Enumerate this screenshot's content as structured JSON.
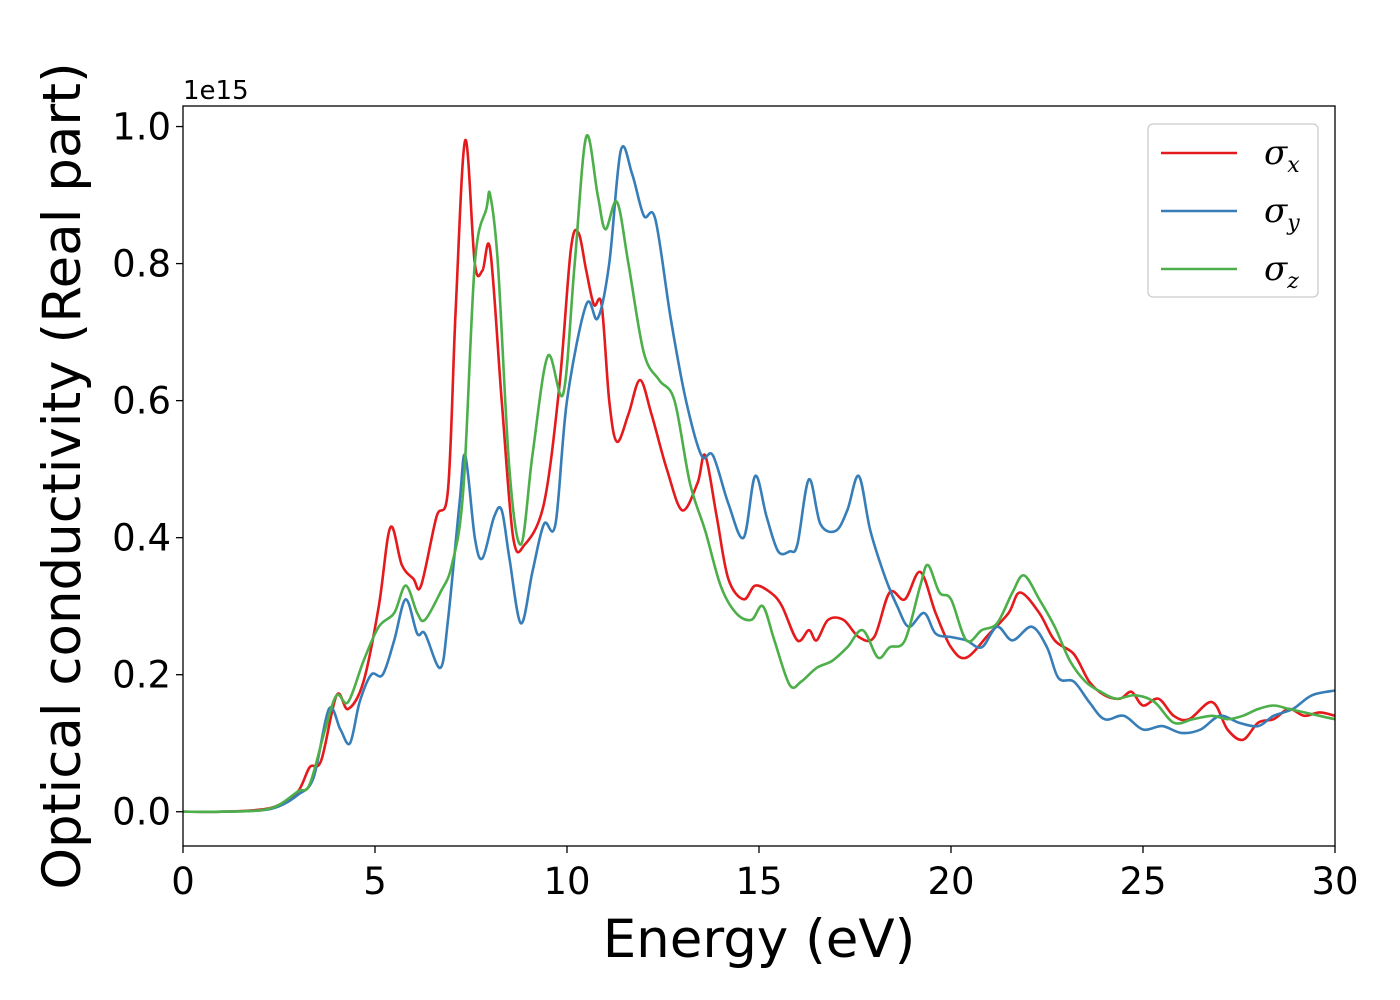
{
  "chart_data": {
    "type": "line",
    "xlabel": "Energy (eV)",
    "ylabel": "Optical conductivity (Real part)",
    "y_offset_label": "1e15",
    "xlim": [
      0,
      30
    ],
    "ylim": [
      -0.05,
      1.03
    ],
    "xticks": [
      0,
      5,
      10,
      15,
      20,
      25,
      30
    ],
    "yticks": [
      0.0,
      0.2,
      0.4,
      0.6,
      0.8,
      1.0
    ],
    "xtick_labels": [
      "0",
      "5",
      "10",
      "15",
      "20",
      "25",
      "30"
    ],
    "ytick_labels": [
      "0.0",
      "0.2",
      "0.4",
      "0.6",
      "0.8",
      "1.0"
    ],
    "grid": false,
    "legend_position": "top-right",
    "series": [
      {
        "name": "σx",
        "symbol": "σ",
        "subscript": "x",
        "color": "#e41a1c",
        "points": [
          [
            0,
            0
          ],
          [
            1,
            0
          ],
          [
            2,
            0.003
          ],
          [
            2.5,
            0.01
          ],
          [
            3,
            0.03
          ],
          [
            3.3,
            0.065
          ],
          [
            3.6,
            0.075
          ],
          [
            4,
            0.17
          ],
          [
            4.3,
            0.15
          ],
          [
            4.7,
            0.19
          ],
          [
            5.1,
            0.3
          ],
          [
            5.4,
            0.415
          ],
          [
            5.7,
            0.36
          ],
          [
            6,
            0.34
          ],
          [
            6.2,
            0.33
          ],
          [
            6.6,
            0.43
          ],
          [
            6.9,
            0.47
          ],
          [
            7.1,
            0.73
          ],
          [
            7.35,
            0.98
          ],
          [
            7.6,
            0.8
          ],
          [
            7.8,
            0.79
          ],
          [
            8,
            0.82
          ],
          [
            8.3,
            0.6
          ],
          [
            8.6,
            0.4
          ],
          [
            8.9,
            0.39
          ],
          [
            9.4,
            0.45
          ],
          [
            9.8,
            0.62
          ],
          [
            10.1,
            0.82
          ],
          [
            10.3,
            0.845
          ],
          [
            10.5,
            0.79
          ],
          [
            10.7,
            0.74
          ],
          [
            10.9,
            0.74
          ],
          [
            11.1,
            0.6
          ],
          [
            11.3,
            0.54
          ],
          [
            11.6,
            0.58
          ],
          [
            11.9,
            0.63
          ],
          [
            12.2,
            0.58
          ],
          [
            12.6,
            0.5
          ],
          [
            13,
            0.44
          ],
          [
            13.4,
            0.48
          ],
          [
            13.6,
            0.52
          ],
          [
            13.9,
            0.43
          ],
          [
            14.2,
            0.34
          ],
          [
            14.6,
            0.31
          ],
          [
            14.9,
            0.33
          ],
          [
            15.3,
            0.32
          ],
          [
            15.6,
            0.3
          ],
          [
            16,
            0.25
          ],
          [
            16.3,
            0.265
          ],
          [
            16.5,
            0.25
          ],
          [
            16.8,
            0.28
          ],
          [
            17.2,
            0.28
          ],
          [
            17.6,
            0.255
          ],
          [
            18,
            0.255
          ],
          [
            18.4,
            0.32
          ],
          [
            18.8,
            0.31
          ],
          [
            19.2,
            0.35
          ],
          [
            19.6,
            0.29
          ],
          [
            20,
            0.24
          ],
          [
            20.4,
            0.225
          ],
          [
            21,
            0.26
          ],
          [
            21.5,
            0.29
          ],
          [
            21.8,
            0.32
          ],
          [
            22.3,
            0.29
          ],
          [
            22.7,
            0.25
          ],
          [
            23.2,
            0.23
          ],
          [
            23.6,
            0.19
          ],
          [
            24,
            0.17
          ],
          [
            24.4,
            0.165
          ],
          [
            24.7,
            0.175
          ],
          [
            25,
            0.155
          ],
          [
            25.4,
            0.165
          ],
          [
            25.8,
            0.14
          ],
          [
            26.2,
            0.135
          ],
          [
            26.8,
            0.16
          ],
          [
            27.2,
            0.12
          ],
          [
            27.6,
            0.105
          ],
          [
            28,
            0.13
          ],
          [
            28.4,
            0.135
          ],
          [
            28.8,
            0.15
          ],
          [
            29.2,
            0.14
          ],
          [
            29.6,
            0.145
          ],
          [
            30,
            0.14
          ]
        ]
      },
      {
        "name": "σy",
        "symbol": "σ",
        "subscript": "y",
        "color": "#377eb8",
        "points": [
          [
            0,
            0
          ],
          [
            1,
            0
          ],
          [
            2,
            0.002
          ],
          [
            2.5,
            0.008
          ],
          [
            3,
            0.025
          ],
          [
            3.4,
            0.05
          ],
          [
            3.8,
            0.15
          ],
          [
            4.1,
            0.12
          ],
          [
            4.35,
            0.1
          ],
          [
            4.6,
            0.16
          ],
          [
            4.9,
            0.2
          ],
          [
            5.2,
            0.2
          ],
          [
            5.5,
            0.25
          ],
          [
            5.8,
            0.31
          ],
          [
            6.1,
            0.26
          ],
          [
            6.3,
            0.26
          ],
          [
            6.7,
            0.21
          ],
          [
            6.9,
            0.28
          ],
          [
            7.2,
            0.45
          ],
          [
            7.35,
            0.52
          ],
          [
            7.6,
            0.4
          ],
          [
            7.8,
            0.37
          ],
          [
            8.1,
            0.43
          ],
          [
            8.3,
            0.44
          ],
          [
            8.5,
            0.37
          ],
          [
            8.8,
            0.275
          ],
          [
            9.1,
            0.35
          ],
          [
            9.4,
            0.42
          ],
          [
            9.7,
            0.42
          ],
          [
            10,
            0.6
          ],
          [
            10.5,
            0.74
          ],
          [
            10.8,
            0.72
          ],
          [
            11.1,
            0.8
          ],
          [
            11.4,
            0.965
          ],
          [
            11.7,
            0.93
          ],
          [
            12,
            0.87
          ],
          [
            12.3,
            0.865
          ],
          [
            12.7,
            0.72
          ],
          [
            13.1,
            0.6
          ],
          [
            13.5,
            0.52
          ],
          [
            13.8,
            0.52
          ],
          [
            14.2,
            0.45
          ],
          [
            14.6,
            0.4
          ],
          [
            14.9,
            0.49
          ],
          [
            15.2,
            0.43
          ],
          [
            15.5,
            0.38
          ],
          [
            15.8,
            0.38
          ],
          [
            16,
            0.39
          ],
          [
            16.3,
            0.485
          ],
          [
            16.6,
            0.42
          ],
          [
            17,
            0.41
          ],
          [
            17.3,
            0.44
          ],
          [
            17.6,
            0.49
          ],
          [
            17.9,
            0.41
          ],
          [
            18.3,
            0.34
          ],
          [
            18.6,
            0.3
          ],
          [
            18.9,
            0.27
          ],
          [
            19.3,
            0.29
          ],
          [
            19.6,
            0.26
          ],
          [
            20,
            0.255
          ],
          [
            20.4,
            0.25
          ],
          [
            20.8,
            0.24
          ],
          [
            21.2,
            0.27
          ],
          [
            21.6,
            0.25
          ],
          [
            22.1,
            0.27
          ],
          [
            22.5,
            0.24
          ],
          [
            22.8,
            0.195
          ],
          [
            23.2,
            0.19
          ],
          [
            23.6,
            0.16
          ],
          [
            24,
            0.135
          ],
          [
            24.5,
            0.14
          ],
          [
            25,
            0.12
          ],
          [
            25.5,
            0.125
          ],
          [
            26,
            0.115
          ],
          [
            26.5,
            0.12
          ],
          [
            27,
            0.14
          ],
          [
            27.5,
            0.13
          ],
          [
            28,
            0.125
          ],
          [
            28.4,
            0.14
          ],
          [
            28.9,
            0.15
          ],
          [
            29.4,
            0.17
          ],
          [
            30,
            0.177
          ]
        ]
      },
      {
        "name": "σz",
        "symbol": "σ",
        "subscript": "z",
        "color": "#4daf4a",
        "points": [
          [
            0,
            0
          ],
          [
            1,
            0
          ],
          [
            2,
            0.002
          ],
          [
            2.5,
            0.01
          ],
          [
            3,
            0.03
          ],
          [
            3.3,
            0.04
          ],
          [
            3.7,
            0.12
          ],
          [
            4,
            0.17
          ],
          [
            4.3,
            0.16
          ],
          [
            4.7,
            0.22
          ],
          [
            5.1,
            0.27
          ],
          [
            5.5,
            0.29
          ],
          [
            5.8,
            0.33
          ],
          [
            6.1,
            0.29
          ],
          [
            6.3,
            0.28
          ],
          [
            6.7,
            0.32
          ],
          [
            7,
            0.36
          ],
          [
            7.3,
            0.47
          ],
          [
            7.6,
            0.8
          ],
          [
            7.9,
            0.88
          ],
          [
            8,
            0.9
          ],
          [
            8.2,
            0.8
          ],
          [
            8.5,
            0.5
          ],
          [
            8.8,
            0.39
          ],
          [
            9.1,
            0.52
          ],
          [
            9.5,
            0.665
          ],
          [
            9.9,
            0.61
          ],
          [
            10.2,
            0.8
          ],
          [
            10.5,
            0.985
          ],
          [
            10.8,
            0.9
          ],
          [
            11,
            0.85
          ],
          [
            11.3,
            0.89
          ],
          [
            11.6,
            0.8
          ],
          [
            12,
            0.67
          ],
          [
            12.4,
            0.63
          ],
          [
            12.8,
            0.6
          ],
          [
            13.2,
            0.48
          ],
          [
            13.6,
            0.41
          ],
          [
            14,
            0.33
          ],
          [
            14.4,
            0.29
          ],
          [
            14.8,
            0.28
          ],
          [
            15.1,
            0.3
          ],
          [
            15.4,
            0.25
          ],
          [
            15.8,
            0.185
          ],
          [
            16.1,
            0.19
          ],
          [
            16.5,
            0.21
          ],
          [
            16.9,
            0.22
          ],
          [
            17.3,
            0.24
          ],
          [
            17.7,
            0.265
          ],
          [
            18.1,
            0.225
          ],
          [
            18.4,
            0.24
          ],
          [
            18.8,
            0.25
          ],
          [
            19.2,
            0.33
          ],
          [
            19.4,
            0.36
          ],
          [
            19.7,
            0.32
          ],
          [
            20,
            0.31
          ],
          [
            20.4,
            0.25
          ],
          [
            20.8,
            0.265
          ],
          [
            21.2,
            0.275
          ],
          [
            21.6,
            0.32
          ],
          [
            21.9,
            0.345
          ],
          [
            22.3,
            0.31
          ],
          [
            22.7,
            0.27
          ],
          [
            23.1,
            0.22
          ],
          [
            23.5,
            0.19
          ],
          [
            23.9,
            0.175
          ],
          [
            24.3,
            0.165
          ],
          [
            24.8,
            0.17
          ],
          [
            25.3,
            0.16
          ],
          [
            25.8,
            0.13
          ],
          [
            26.3,
            0.135
          ],
          [
            26.8,
            0.14
          ],
          [
            27.2,
            0.135
          ],
          [
            27.6,
            0.14
          ],
          [
            28,
            0.15
          ],
          [
            28.4,
            0.155
          ],
          [
            28.8,
            0.15
          ],
          [
            29.2,
            0.145
          ],
          [
            29.6,
            0.14
          ],
          [
            30,
            0.135
          ]
        ]
      }
    ]
  }
}
